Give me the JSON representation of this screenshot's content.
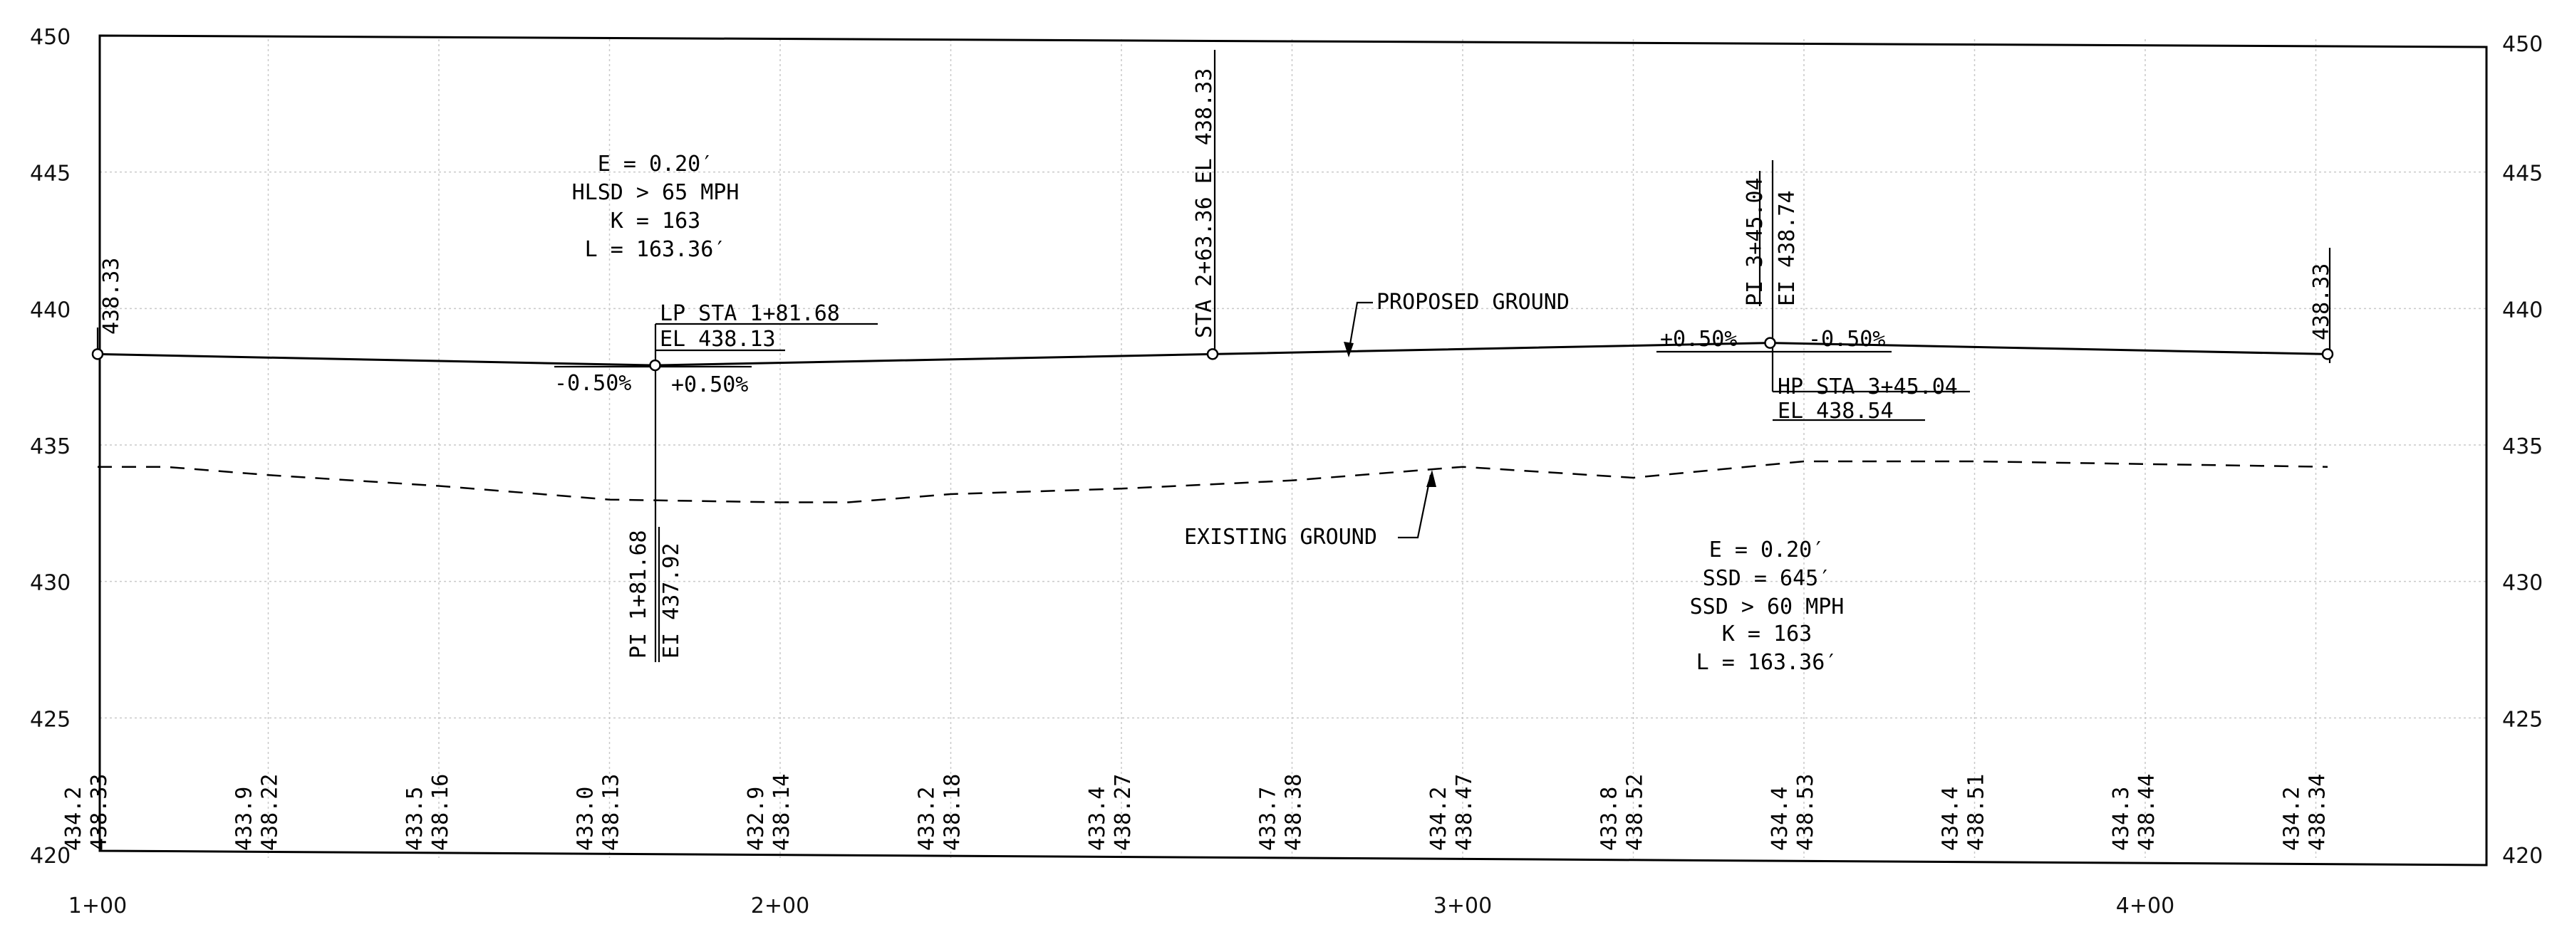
{
  "chart_data": {
    "type": "line",
    "x_axis": {
      "ticks": [
        100,
        200,
        300,
        400
      ],
      "tick_labels": [
        "1+00",
        "2+00",
        "3+00",
        "4+00"
      ]
    },
    "y_axis": {
      "range": [
        420,
        450
      ],
      "ticks": [
        420,
        425,
        430,
        435,
        440,
        445,
        450
      ],
      "tick_labels": [
        "420",
        "425",
        "430",
        "435",
        "440",
        "445",
        "450"
      ]
    },
    "grid": true,
    "proposed_ground": {
      "label": "PROPOSED GROUND",
      "points": [
        [
          100,
          438.33
        ],
        [
          181.68,
          437.92
        ],
        [
          263.36,
          438.33
        ],
        [
          345.04,
          438.74
        ],
        [
          426.72,
          438.33
        ]
      ]
    },
    "existing_ground": {
      "label": "EXISTING GROUND",
      "points": [
        [
          100,
          434.2
        ],
        [
          110,
          434.2
        ],
        [
          125,
          433.9
        ],
        [
          150,
          433.5
        ],
        [
          175,
          433.0
        ],
        [
          200,
          432.9
        ],
        [
          210,
          432.9
        ],
        [
          225,
          433.2
        ],
        [
          250,
          433.4
        ],
        [
          275,
          433.7
        ],
        [
          300,
          434.2
        ],
        [
          325,
          433.8
        ],
        [
          350,
          434.4
        ],
        [
          375,
          434.4
        ],
        [
          400,
          434.3
        ],
        [
          426.72,
          434.2
        ]
      ]
    },
    "elevation_table": [
      {
        "station": 100,
        "existing": "434.2",
        "proposed": "438.33"
      },
      {
        "station": 125,
        "existing": "433.9",
        "proposed": "438.22"
      },
      {
        "station": 150,
        "existing": "433.5",
        "proposed": "438.16"
      },
      {
        "station": 175,
        "existing": "433.0",
        "proposed": "438.13"
      },
      {
        "station": 200,
        "existing": "432.9",
        "proposed": "438.14"
      },
      {
        "station": 225,
        "existing": "433.2",
        "proposed": "438.18"
      },
      {
        "station": 250,
        "existing": "433.4",
        "proposed": "438.27"
      },
      {
        "station": 275,
        "existing": "433.7",
        "proposed": "438.38"
      },
      {
        "station": 300,
        "existing": "434.2",
        "proposed": "438.47"
      },
      {
        "station": 325,
        "existing": "433.8",
        "proposed": "438.52"
      },
      {
        "station": 350,
        "existing": "434.4",
        "proposed": "438.53"
      },
      {
        "station": 375,
        "existing": "434.4",
        "proposed": "438.51"
      },
      {
        "station": 400,
        "existing": "434.3",
        "proposed": "438.44"
      },
      {
        "station": 425,
        "existing": "434.2",
        "proposed": "438.34"
      }
    ]
  },
  "annotations": {
    "start_elev": "438.33",
    "end_elev": "438.33",
    "sag_curve": {
      "e": "E = 0.20′",
      "hlsd": "HLSD > 65 MPH",
      "k": "K = 163",
      "l": "L = 163.36′"
    },
    "lp": {
      "sta": "LP STA 1+81.68",
      "el": "EL 438.13"
    },
    "pi1": {
      "sta": "PI 1+81.68",
      "el": "EI 437.92"
    },
    "grade_left_in": "-0.50%",
    "grade_left_out": "+0.50%",
    "mid_station": "STA 2+63.36 EL 438.33",
    "proposed_label": "PROPOSED GROUND",
    "existing_label": "EXISTING GROUND",
    "pi2": {
      "sta": "PI 3+45.04",
      "el": "EI 438.74"
    },
    "grade_right_in": "+0.50%",
    "grade_right_out": "-0.50%",
    "hp": {
      "sta": "HP STA 3+45.04",
      "el": "EL 438.54"
    },
    "crest_curve": {
      "e": "E = 0.20′",
      "ssd": "SSD = 645′",
      "ssd_speed": "SSD > 60 MPH",
      "k": "K = 163",
      "l": "L = 163.36′"
    }
  }
}
